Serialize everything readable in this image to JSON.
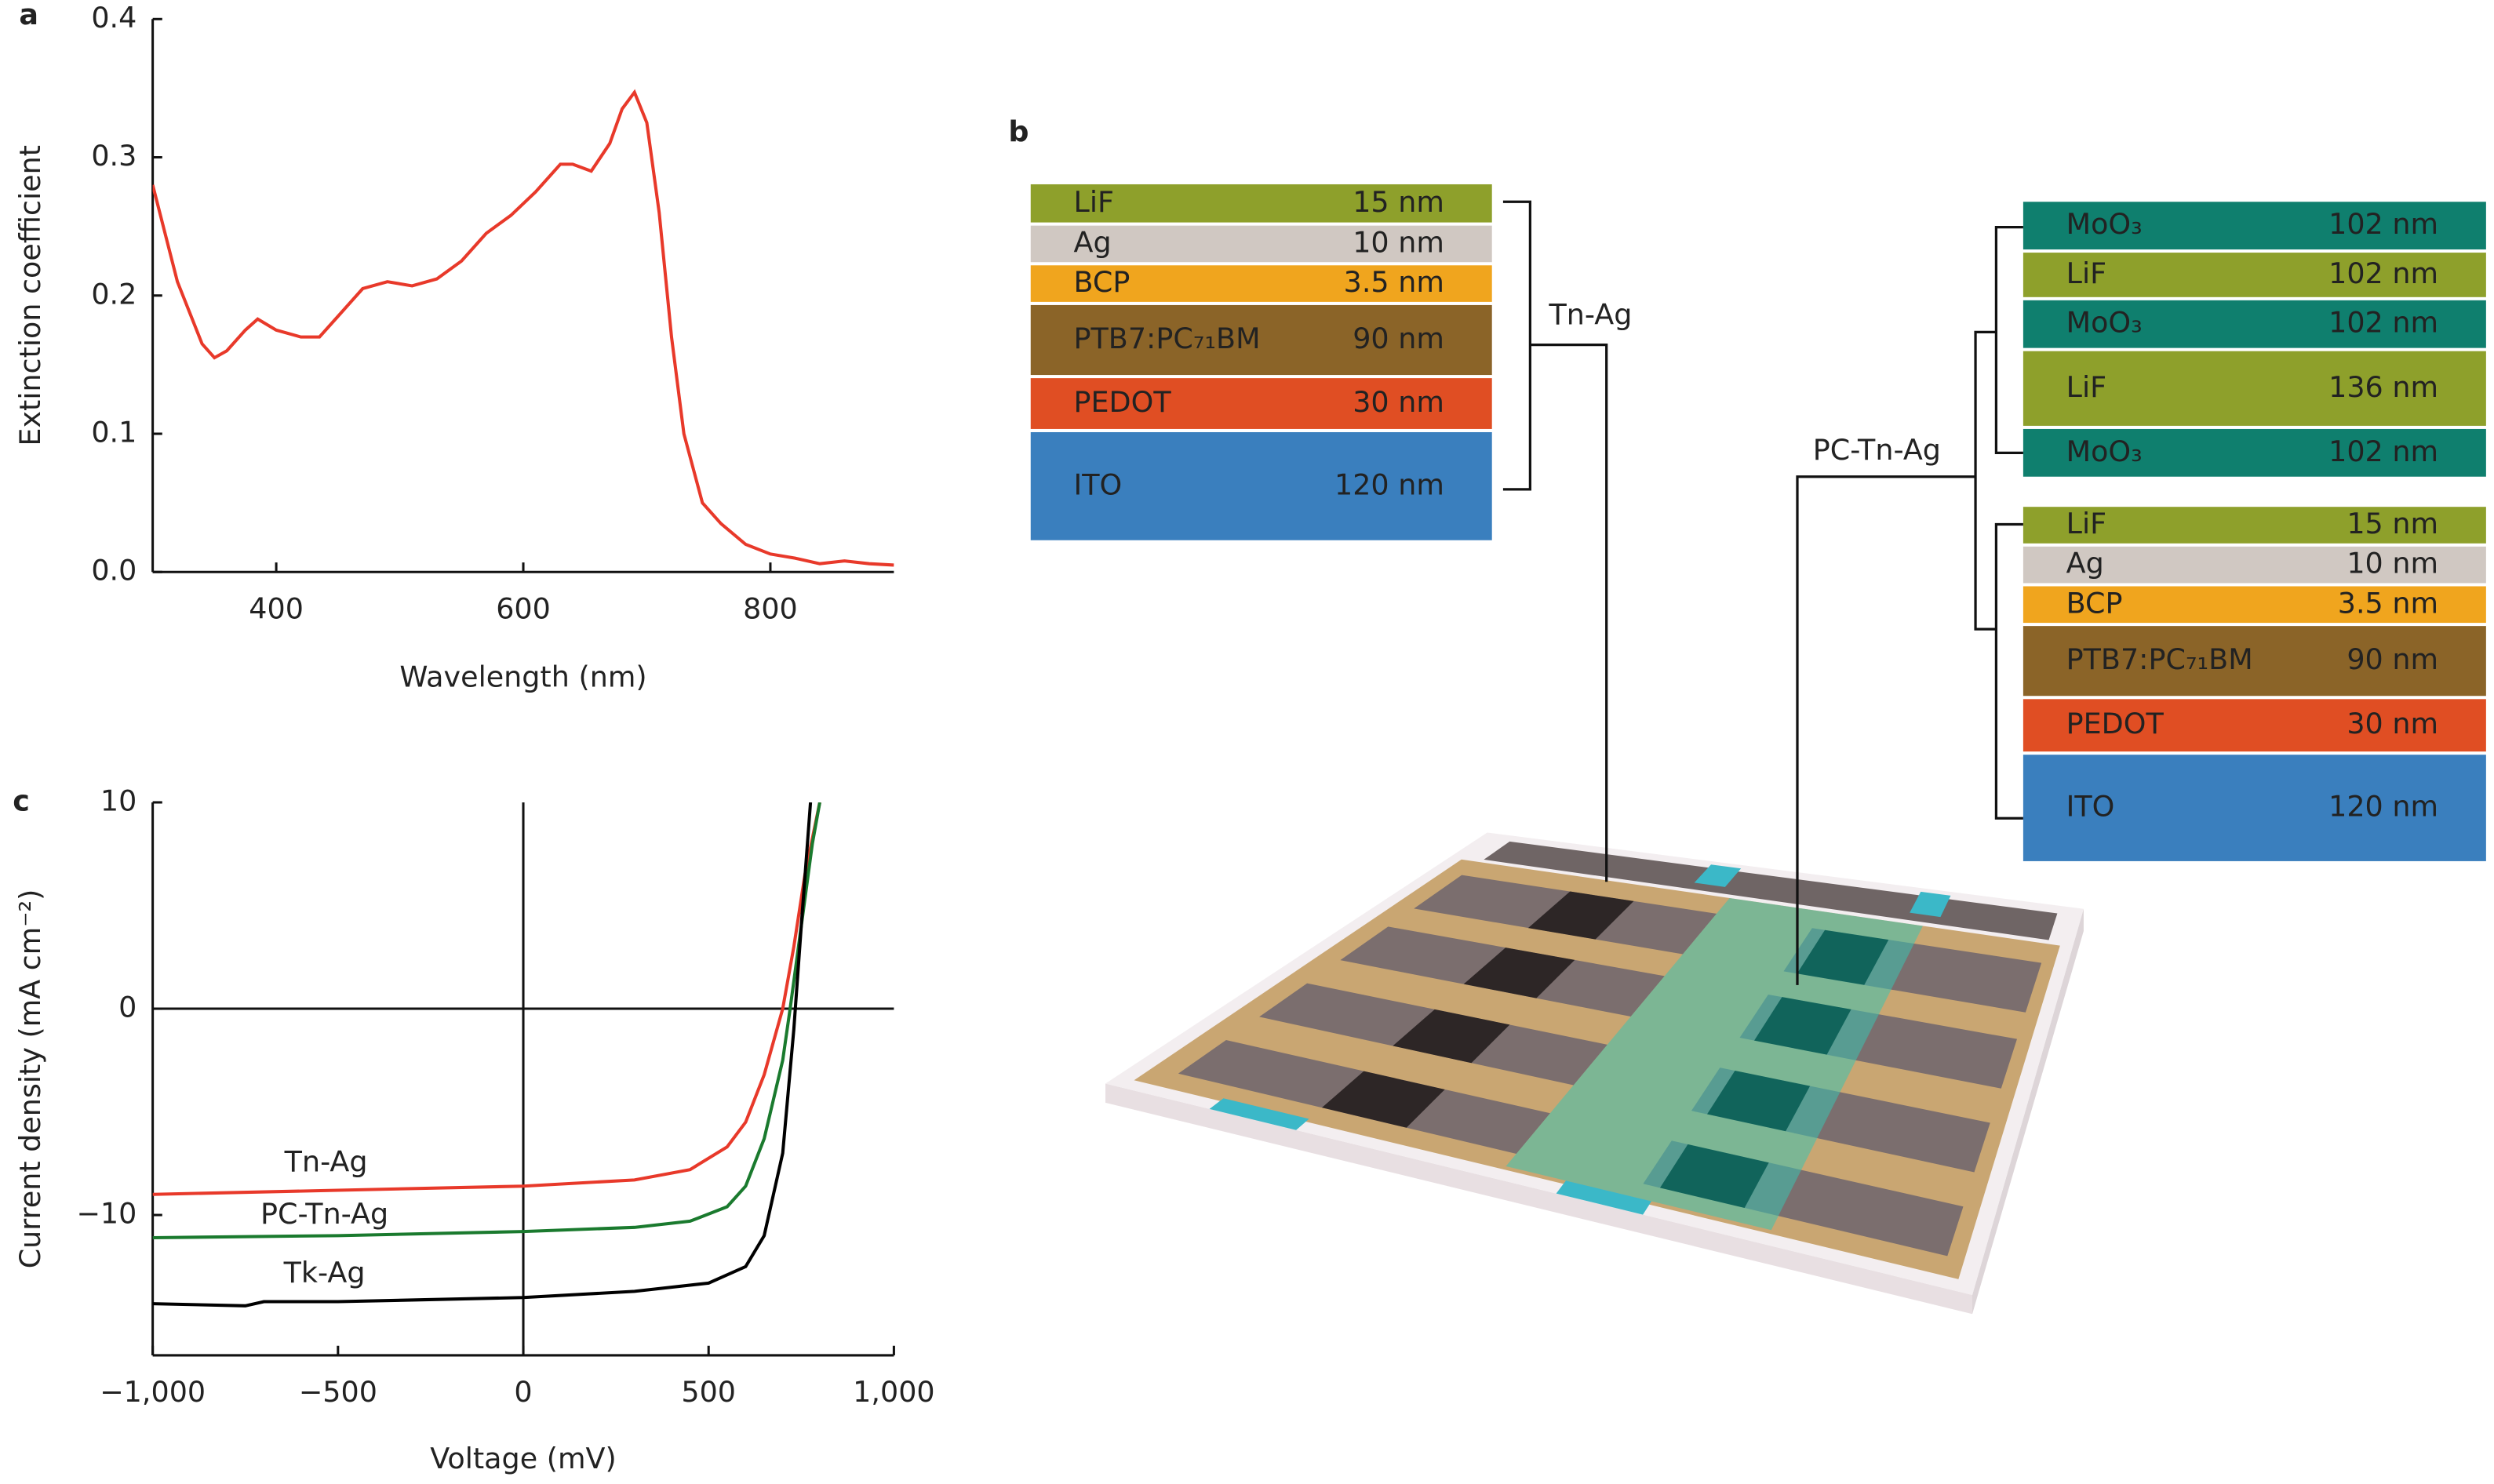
{
  "panel_labels": [
    "a",
    "b",
    "c"
  ],
  "chart_data": [
    {
      "type": "line",
      "xlabel": "Wavelength (nm)",
      "ylabel": "Extinction coefficient",
      "xlim": [
        300,
        900
      ],
      "xticks": [
        400,
        600,
        800
      ],
      "ylim": [
        0,
        0.4
      ],
      "yticks": [
        {
          "value": 0,
          "label": "0.0"
        },
        0.1,
        0.2,
        0.3,
        0.4
      ],
      "series": [
        {
          "name": null,
          "color": "#e8392a",
          "x": [
            300,
            320,
            340,
            350,
            360,
            375,
            385,
            400,
            420,
            435,
            450,
            470,
            490,
            510,
            530,
            550,
            570,
            590,
            610,
            630,
            640,
            655,
            670,
            680,
            690,
            700,
            710,
            720,
            730,
            745,
            760,
            780,
            800,
            820,
            840,
            860,
            880,
            900
          ],
          "values": [
            0.28,
            0.21,
            0.165,
            0.155,
            0.16,
            0.175,
            0.183,
            0.175,
            0.17,
            0.17,
            0.185,
            0.205,
            0.21,
            0.207,
            0.212,
            0.225,
            0.245,
            0.258,
            0.275,
            0.295,
            0.295,
            0.29,
            0.31,
            0.335,
            0.347,
            0.325,
            0.26,
            0.17,
            0.1,
            0.05,
            0.035,
            0.02,
            0.013,
            0.01,
            0.006,
            0.008,
            0.006,
            0.005
          ]
        }
      ]
    },
    {
      "type": "line",
      "xlabel": "Voltage (mV)",
      "ylabel": "Current density (mA cm⁻²)",
      "zero_lines": true,
      "xlim": [
        -1000,
        1000
      ],
      "xticks": [
        {
          "value": -1000,
          "label": "−1,000"
        },
        {
          "value": -500,
          "label": "−500"
        },
        0,
        500,
        {
          "value": 1000,
          "label": "1,000"
        }
      ],
      "ylim": [
        -16.8,
        10
      ],
      "yticks": [
        10,
        0,
        {
          "value": -10,
          "label": "−10"
        }
      ],
      "series": [
        {
          "name": "Tn-Ag",
          "color": "#e8392a",
          "x": [
            -1000,
            -500,
            0,
            300,
            450,
            550,
            600,
            650,
            700,
            730,
            760,
            800
          ],
          "values": [
            -9.0,
            -8.8,
            -8.6,
            -8.3,
            -7.8,
            -6.7,
            -5.5,
            -3.2,
            0,
            3,
            6.5,
            10
          ]
        },
        {
          "name": "PC-Tn-Ag",
          "color": "#1a7a2e",
          "x": [
            -1000,
            -500,
            0,
            300,
            450,
            550,
            600,
            650,
            700,
            720,
            750,
            780,
            800
          ],
          "values": [
            -11.1,
            -11,
            -10.8,
            -10.6,
            -10.3,
            -9.6,
            -8.6,
            -6.3,
            -2.5,
            0,
            4,
            8,
            10
          ]
        },
        {
          "name": "Tk-Ag",
          "color": "#000000",
          "x": [
            -1000,
            -750,
            -700,
            -500,
            0,
            300,
            500,
            600,
            650,
            700,
            730,
            750,
            775
          ],
          "values": [
            -14.3,
            -14.4,
            -14.2,
            -14.2,
            -14,
            -13.7,
            -13.3,
            -12.5,
            -11,
            -7,
            -1,
            4,
            10
          ]
        }
      ]
    }
  ],
  "diagram": {
    "left": {
      "label": "Tn-Ag",
      "layers": [
        {
          "name": "LiF",
          "thickness": "15 nm",
          "color": "#8ea02b"
        },
        {
          "name": "Ag",
          "thickness": "10 nm",
          "color": "#d0c8c2"
        },
        {
          "name": "BCP",
          "thickness": "3.5 nm",
          "color": "#f0a51e"
        },
        {
          "name": "PTB7:PC₇₁BM",
          "thickness": "90 nm",
          "color": "#8b6428"
        },
        {
          "name": "PEDOT",
          "thickness": "30 nm",
          "color": "#e04e23"
        },
        {
          "name": "ITO",
          "thickness": "120 nm",
          "color": "#3a7fbe"
        }
      ]
    },
    "right": {
      "label": "PC-Tn-Ag",
      "layers": [
        {
          "name": "MoO₃",
          "thickness": "102 nm",
          "color": "#0f7f6e"
        },
        {
          "name": "LiF",
          "thickness": "102 nm",
          "color": "#8ea02b"
        },
        {
          "name": "MoO₃",
          "thickness": "102 nm",
          "color": "#0f7f6e"
        },
        {
          "name": "LiF",
          "thickness": "136 nm",
          "color": "#8ea02b"
        },
        {
          "name": "MoO₃",
          "thickness": "102 nm",
          "color": "#0f7f6e"
        },
        {
          "name": "LiF",
          "thickness": "15 nm",
          "color": "#8ea02b"
        },
        {
          "name": "Ag",
          "thickness": "10 nm",
          "color": "#d0c8c2"
        },
        {
          "name": "BCP",
          "thickness": "3.5 nm",
          "color": "#f0a51e"
        },
        {
          "name": "PTB7:PC₇₁BM",
          "thickness": "90 nm",
          "color": "#8b6428"
        },
        {
          "name": "PEDOT",
          "thickness": "30 nm",
          "color": "#e04e23"
        },
        {
          "name": "ITO",
          "thickness": "120 nm",
          "color": "#3a7fbe"
        }
      ]
    }
  }
}
